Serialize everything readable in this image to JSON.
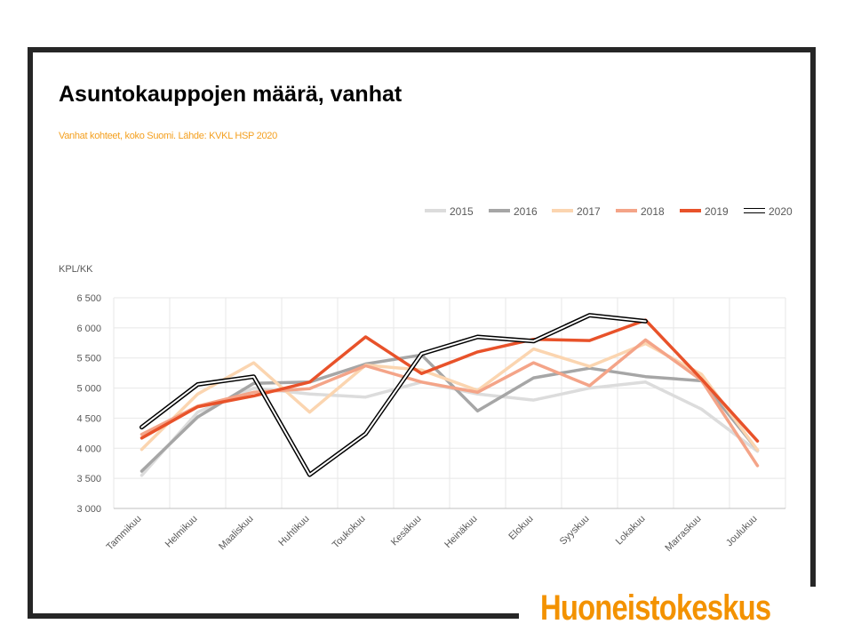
{
  "title": "Asuntokauppojen määrä, vanhat",
  "subtitle": "Vanhat kohteet, koko Suomi. Lähde: KVKL HSP 2020",
  "brand": "Huoneistokeskus",
  "colors": {
    "frame": "#262626",
    "subtitle": "#f4a020",
    "brand": "#f39200",
    "grid": "#e7e7e7",
    "axis_text": "#595959"
  },
  "chart_data": {
    "type": "line",
    "title": "Asuntokauppojen määrä, vanhat",
    "ylabel": "KPL/KK",
    "xlabel": "",
    "ylim": [
      3000,
      6500
    ],
    "yticks": [
      3000,
      3500,
      4000,
      4500,
      5000,
      5500,
      6000,
      6500
    ],
    "ytick_labels": [
      "3 000",
      "3 500",
      "4 000",
      "4 500",
      "5 000",
      "5 500",
      "6 000",
      "6 500"
    ],
    "grid": true,
    "legend_position": "top-right",
    "categories": [
      "Tammikuu",
      "Helmikuu",
      "Maaliskuu",
      "Huhtikuu",
      "Toukokuu",
      "Kesäkuu",
      "Heinäkuu",
      "Elokuu",
      "Syyskuu",
      "Lokakuu",
      "Marraskuu",
      "Joulukuu"
    ],
    "series": [
      {
        "name": "2015",
        "color": "#dcdcdc",
        "style": "solid",
        "values": [
          3550,
          4600,
          5000,
          4900,
          4850,
          5100,
          4900,
          4800,
          5000,
          5100,
          4650,
          3950
        ]
      },
      {
        "name": "2016",
        "color": "#a6a6a6",
        "style": "solid",
        "values": [
          3620,
          4520,
          5080,
          5100,
          5400,
          5550,
          4620,
          5170,
          5330,
          5190,
          5120,
          3970
        ]
      },
      {
        "name": "2017",
        "color": "#fbd5b0",
        "style": "solid",
        "values": [
          3980,
          4900,
          5420,
          4600,
          5380,
          5300,
          4960,
          5650,
          5360,
          5740,
          5230,
          3970
        ]
      },
      {
        "name": "2018",
        "color": "#f4a488",
        "style": "solid",
        "values": [
          4230,
          4700,
          4930,
          4990,
          5370,
          5100,
          4930,
          5420,
          5040,
          5800,
          5130,
          3710
        ]
      },
      {
        "name": "2019",
        "color": "#e8522a",
        "style": "solid",
        "values": [
          4170,
          4690,
          4870,
          5100,
          5850,
          5240,
          5600,
          5810,
          5790,
          6130,
          5150,
          4120
        ]
      },
      {
        "name": "2020",
        "color": "#000000",
        "style": "double",
        "values": [
          4350,
          5060,
          5190,
          3560,
          4240,
          5570,
          5850,
          5780,
          6210,
          6110,
          null,
          null
        ]
      }
    ]
  }
}
